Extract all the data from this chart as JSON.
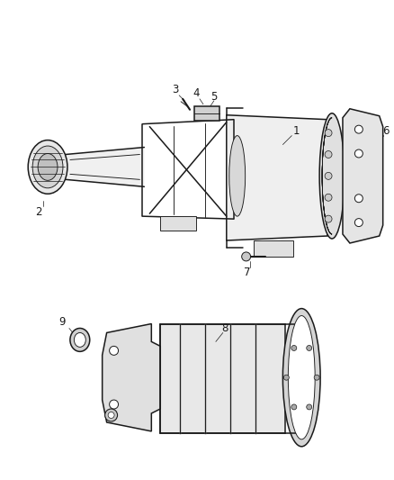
{
  "bg_color": "#ffffff",
  "line_color": "#1a1a1a",
  "fig_width": 4.38,
  "fig_height": 5.33,
  "dpi": 100,
  "label_fontsize": 8.5,
  "label_color": "#1a1a1a",
  "lw_main": 1.1,
  "lw_thin": 0.65,
  "lw_thick": 1.5
}
